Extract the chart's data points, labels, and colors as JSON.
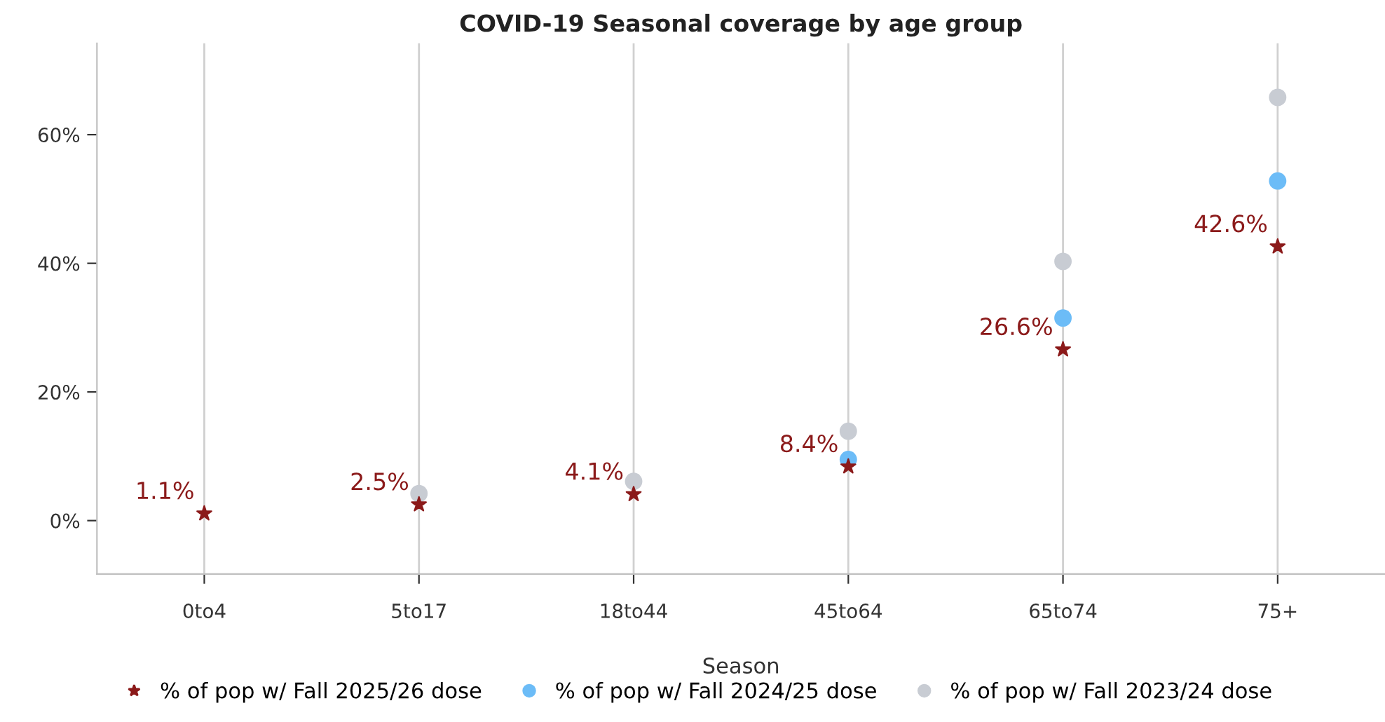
{
  "chart_data": {
    "type": "scatter",
    "title": "COVID-19 Seasonal coverage by age group",
    "xlabel": "Season",
    "categories": [
      "0to4",
      "5to17",
      "18to44",
      "45to64",
      "65to74",
      "75+"
    ],
    "series": [
      {
        "name": "% of pop w/ Fall 2025/26 dose",
        "color": "#8b1a1a",
        "marker": "star",
        "values": [
          1.1,
          2.5,
          4.1,
          8.4,
          26.6,
          42.6
        ],
        "value_labels": [
          "1.1%",
          "2.5%",
          "4.1%",
          "8.4%",
          "26.6%",
          "42.6%"
        ]
      },
      {
        "name": "% of pop w/ Fall 2024/25 dose",
        "color": "#6cbcf7",
        "marker": "circle",
        "values": [
          null,
          null,
          null,
          9.5,
          31.5,
          52.8
        ]
      },
      {
        "name": "% of pop w/ Fall 2023/24 dose",
        "color": "#c8ccd3",
        "marker": "circle",
        "values": [
          null,
          4.2,
          6.1,
          13.9,
          40.3,
          65.8
        ]
      }
    ],
    "ylim": [
      -8.3,
      74.2
    ],
    "yticks": [
      {
        "value": 0,
        "label": "0%"
      },
      {
        "value": 20,
        "label": "20%"
      },
      {
        "value": 40,
        "label": "40%"
      },
      {
        "value": 60,
        "label": "60%"
      }
    ],
    "grid": "x",
    "legend": "bottom"
  }
}
